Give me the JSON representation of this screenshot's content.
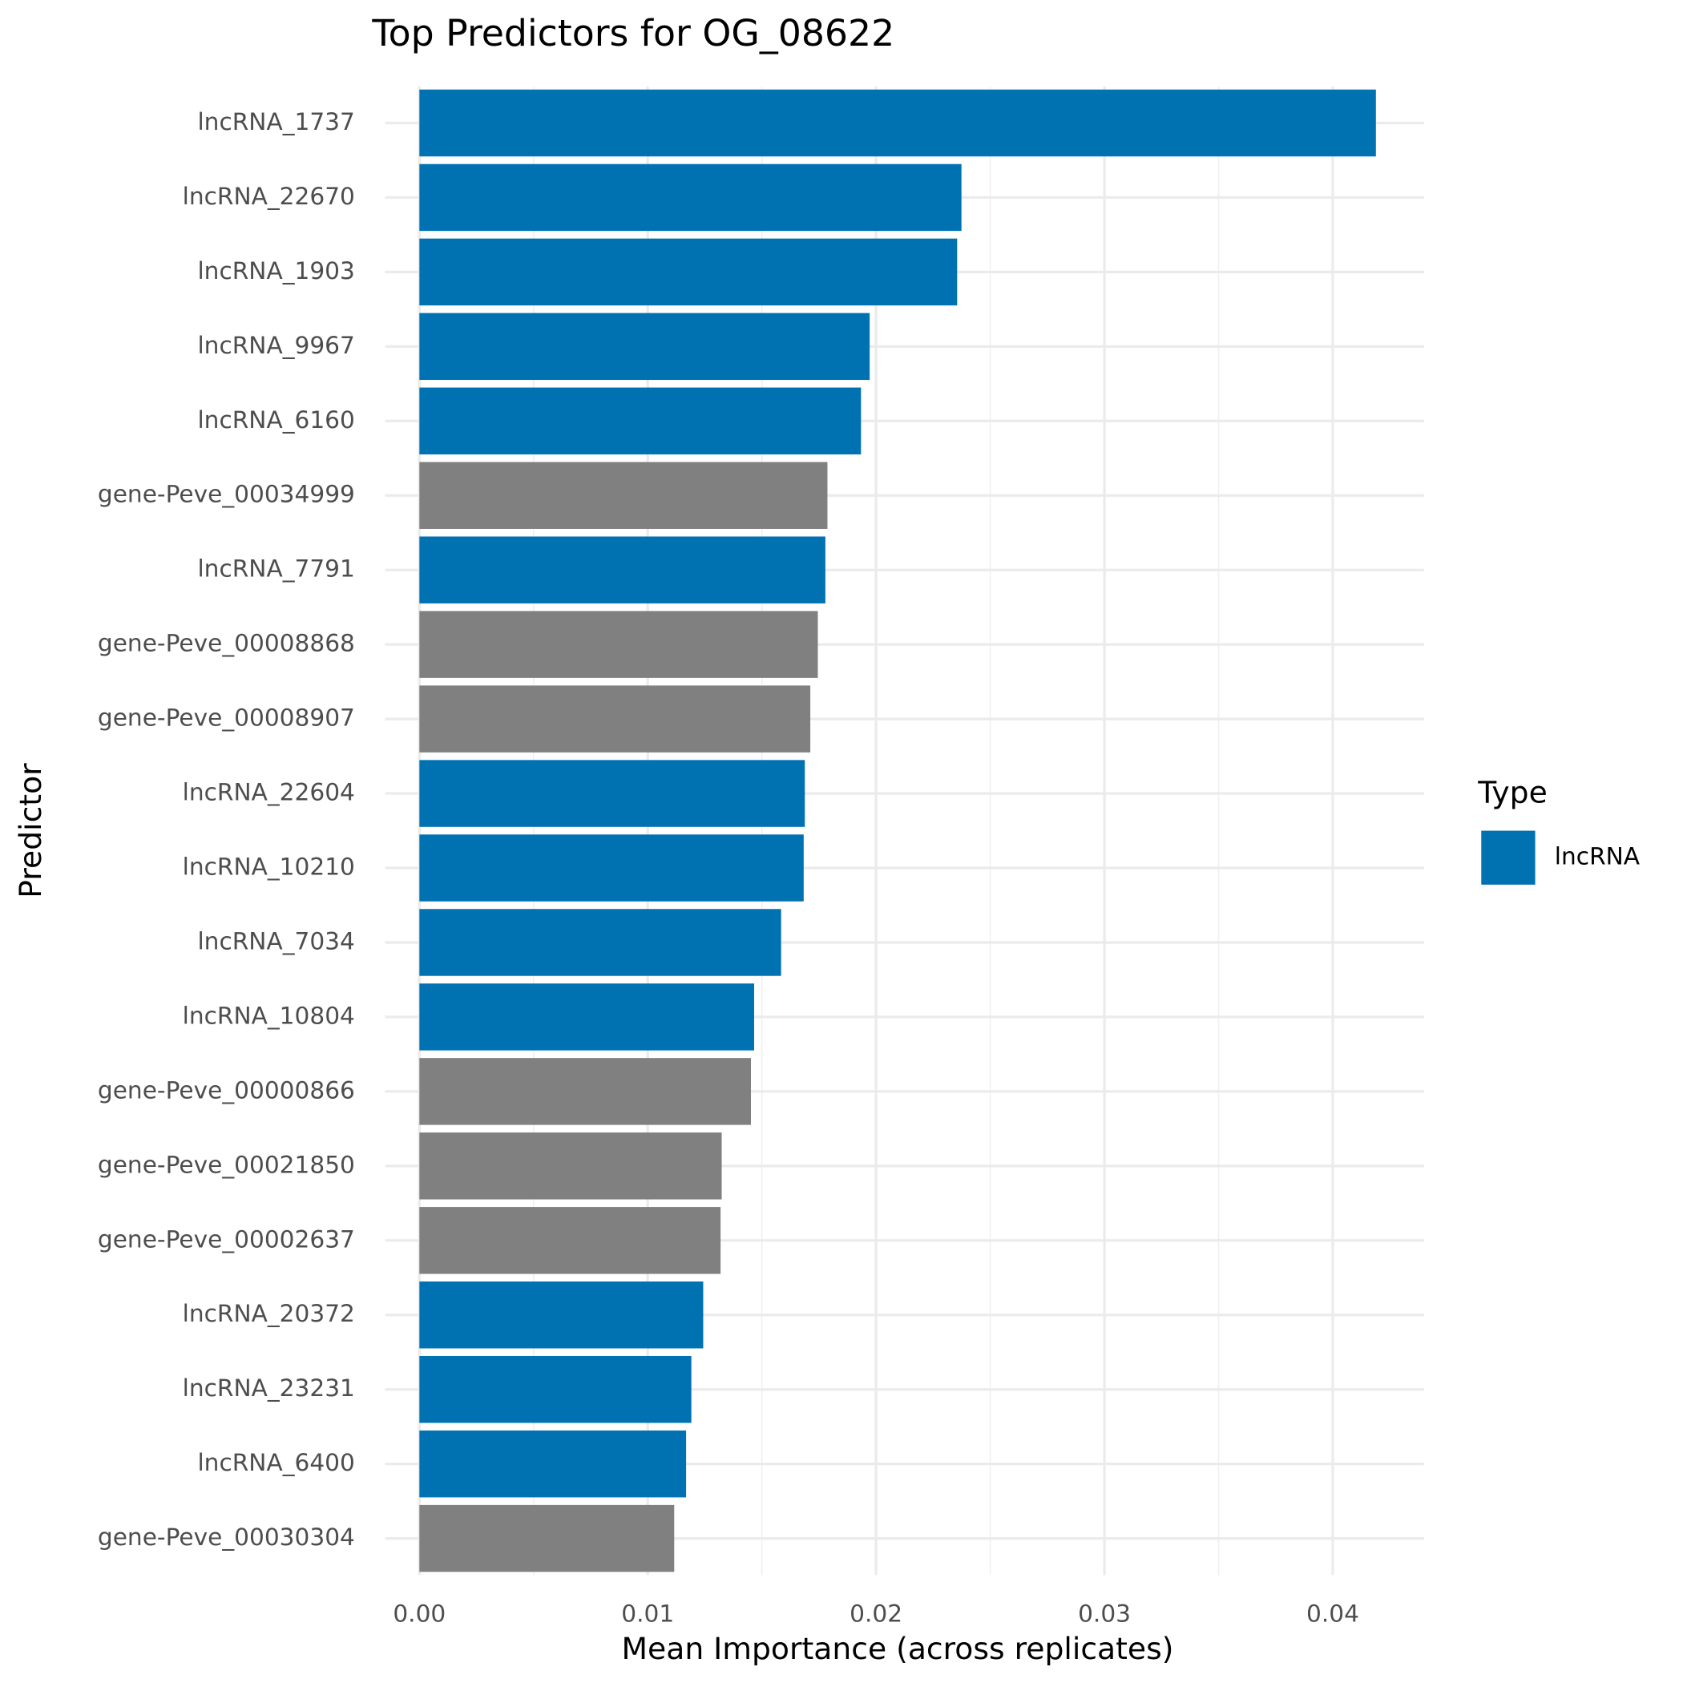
{
  "chart_data": {
    "type": "hbar",
    "title": "Top Predictors for OG_08622",
    "x_label": "Mean Importance (across replicates)",
    "y_label": "Predictor",
    "legend_title": "Type",
    "categories": [
      "lncRNA_1737",
      "lncRNA_22670",
      "lncRNA_1903",
      "lncRNA_9967",
      "lncRNA_6160",
      "gene-Peve_00034999",
      "lncRNA_7791",
      "gene-Peve_00008868",
      "gene-Peve_00008907",
      "lncRNA_22604",
      "lncRNA_10210",
      "lncRNA_7034",
      "lncRNA_10804",
      "gene-Peve_00000866",
      "gene-Peve_00021850",
      "gene-Peve_00002637",
      "lncRNA_20372",
      "lncRNA_23231",
      "lncRNA_6400",
      "gene-Peve_00030304"
    ],
    "series": [
      {
        "name": "lncRNA",
        "color": "#0072b2",
        "values": [
          0.04189,
          0.02374,
          0.02355,
          0.01972,
          0.01934,
          null,
          0.01778,
          null,
          null,
          0.01688,
          0.01683,
          0.01584,
          0.01466,
          null,
          null,
          null,
          0.01243,
          0.01191,
          0.01168,
          null
        ]
      },
      {
        "color": "#808080",
        "values": [
          null,
          null,
          null,
          null,
          null,
          0.01787,
          null,
          0.01745,
          0.01712,
          null,
          null,
          null,
          null,
          0.01452,
          0.01324,
          0.01319,
          null,
          null,
          null,
          0.01116
        ]
      }
    ],
    "xlim": [
      -0.0015,
      0.044
    ],
    "xticks": [
      {
        "value": 0,
        "label": "0.00"
      },
      {
        "value": 0.01,
        "label": "0.01"
      },
      {
        "value": 0.02,
        "label": "0.02"
      },
      {
        "value": 0.03,
        "label": "0.03"
      },
      {
        "value": 0.04,
        "label": "0.04"
      }
    ],
    "grid": true,
    "legend_position": "right"
  }
}
